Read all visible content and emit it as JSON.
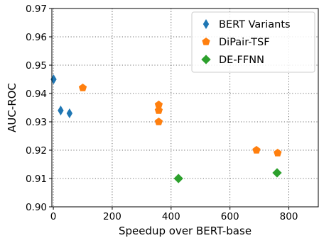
{
  "chart_data": {
    "type": "scatter",
    "xlabel": "Speedup over BERT-base",
    "ylabel": "AUC-ROC",
    "xlim": [
      -5,
      900
    ],
    "ylim": [
      0.9,
      0.97
    ],
    "xticks": [
      0,
      200,
      400,
      600,
      800
    ],
    "yticks": [
      0.9,
      0.91,
      0.92,
      0.93,
      0.94,
      0.95,
      0.96,
      0.97
    ],
    "xtick_labels": [
      "0",
      "200",
      "400",
      "600",
      "800"
    ],
    "ytick_labels": [
      "0.90",
      "0.91",
      "0.92",
      "0.93",
      "0.94",
      "0.95",
      "0.96",
      "0.97"
    ],
    "grid": true,
    "legend_position": "top-right",
    "series": [
      {
        "name": "BERT Variants",
        "marker": "thin-diamond",
        "color": "#1f77b4",
        "points": [
          {
            "x": 1,
            "y": 0.945
          },
          {
            "x": 25,
            "y": 0.934
          },
          {
            "x": 55,
            "y": 0.933
          }
        ]
      },
      {
        "name": "DiPair-TSF",
        "marker": "pentagon",
        "color": "#ff7f0e",
        "points": [
          {
            "x": 100,
            "y": 0.942
          },
          {
            "x": 358,
            "y": 0.936
          },
          {
            "x": 358,
            "y": 0.934
          },
          {
            "x": 358,
            "y": 0.93
          },
          {
            "x": 690,
            "y": 0.92
          },
          {
            "x": 762,
            "y": 0.919
          }
        ]
      },
      {
        "name": "DE-FFNN",
        "marker": "diamond",
        "color": "#2ca02c",
        "points": [
          {
            "x": 425,
            "y": 0.91
          },
          {
            "x": 760,
            "y": 0.912
          }
        ]
      }
    ]
  }
}
